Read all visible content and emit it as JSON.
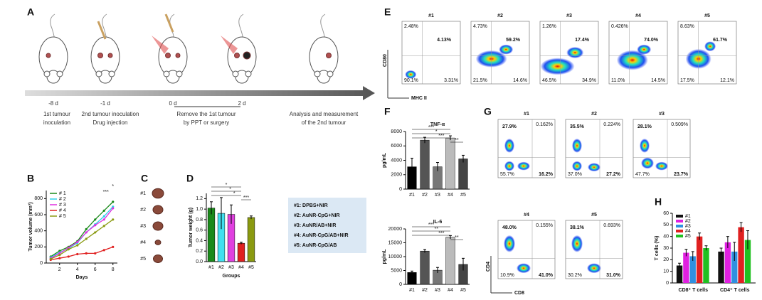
{
  "panel_a": {
    "label": "A",
    "days": [
      "-8 d",
      "-1 d",
      "0 d",
      "2 d"
    ],
    "captions": [
      [
        "1st tumour",
        "inoculation"
      ],
      [
        "2nd tumour inoculation",
        "Drug injection"
      ],
      [
        "Remove the 1st tumour",
        "by PPT or surgery"
      ],
      [
        "Analysis and measurement",
        "of the 2nd tumour"
      ]
    ]
  },
  "panel_c": {
    "label": "C",
    "labels": [
      "#1",
      "#2",
      "#3",
      "#4",
      "#5"
    ]
  },
  "legend_box": [
    "#1: DPBS+NIR",
    "#2: AuNR-CpG+NIR",
    "#3: AuNR/AB+NIR",
    "#4: AuNR-CpG/AB+NIR",
    "#5: AuNR-CpG/AB"
  ],
  "chart_data": [
    {
      "panel": "B",
      "type": "line",
      "ylabel": "Tumor volume (mm³)",
      "xlabel": "Days",
      "x": [
        1,
        2,
        3,
        4,
        5,
        6,
        7,
        8
      ],
      "xlim": [
        0.5,
        8.5
      ],
      "xticks": [
        2,
        4,
        6,
        8
      ],
      "ylim": [
        0,
        900
      ],
      "yticks": [
        0,
        200,
        400,
        600,
        800
      ],
      "series": [
        {
          "name": "# 1",
          "color": "#1a8a1a",
          "values": [
            80,
            150,
            200,
            270,
            420,
            540,
            650,
            760
          ]
        },
        {
          "name": "# 2",
          "color": "#30d0e8",
          "values": [
            70,
            130,
            180,
            250,
            380,
            480,
            580,
            700
          ]
        },
        {
          "name": "# 3",
          "color": "#e030e0",
          "values": [
            60,
            120,
            190,
            260,
            380,
            470,
            540,
            680
          ]
        },
        {
          "name": "# 4",
          "color": "#e02020",
          "values": [
            40,
            60,
            80,
            110,
            120,
            120,
            160,
            200
          ]
        },
        {
          "name": "# 5",
          "color": "#8a9a10",
          "values": [
            50,
            100,
            170,
            220,
            300,
            380,
            460,
            540
          ]
        }
      ],
      "annotations": [
        "*",
        "***"
      ]
    },
    {
      "panel": "D",
      "type": "bar",
      "ylabel": "Tumor weight (g)",
      "xlabel": "Groups",
      "categories": [
        "#1",
        "#2",
        "#3",
        "#4",
        "#5"
      ],
      "values": [
        1.02,
        0.92,
        0.9,
        0.35,
        0.84
      ],
      "errors": [
        0.12,
        0.3,
        0.18,
        0.02,
        0.03
      ],
      "colors": [
        "#1a8a1a",
        "#40e0f0",
        "#e040e0",
        "#e02020",
        "#8a9a10"
      ],
      "ylim": [
        0,
        1.3
      ],
      "yticks": [
        {
          "value": 0,
          "label": "0.0"
        },
        0.2,
        0.4,
        0.6,
        0.8,
        {
          "value": 1,
          "label": "1.0"
        },
        1.2
      ],
      "annotations": [
        "*",
        "*",
        "*",
        "***"
      ]
    },
    {
      "panel": "F",
      "type": "bar",
      "title": "TNF-α",
      "ylabel": "pg/mL",
      "categories": [
        "#1",
        "#2",
        "#3",
        "#4",
        "#5"
      ],
      "values": [
        3100,
        6800,
        3100,
        7100,
        4200
      ],
      "errors": [
        1200,
        400,
        600,
        300,
        500
      ],
      "colors": [
        "#000000",
        "#555555",
        "#777777",
        "#bbbbbb",
        "#444444"
      ],
      "ylim": [
        0,
        8000
      ],
      "yticks": [
        0,
        2000,
        4000,
        6000,
        8000
      ],
      "annotations": [
        "***",
        "*",
        "***",
        "**"
      ]
    },
    {
      "type": "bar",
      "title": "IL-6",
      "ylabel": "pg/mL",
      "categories": [
        "#1",
        "#2",
        "#3",
        "#4",
        "#5"
      ],
      "values": [
        4300,
        12000,
        5100,
        17000,
        7200
      ],
      "errors": [
        500,
        600,
        1000,
        600,
        2200
      ],
      "colors": [
        "#000000",
        "#555555",
        "#777777",
        "#bbbbbb",
        "#444444"
      ],
      "ylim": [
        0,
        20000
      ],
      "yticks": [
        0,
        5000,
        10000,
        15000,
        20000
      ],
      "annotations": [
        "***",
        "**",
        "***",
        "**"
      ]
    },
    {
      "panel": "H",
      "type": "bar",
      "ylabel": "T cells (%)",
      "categories": [
        "CD8⁺ T cells",
        "CD4⁺ T cells"
      ],
      "series": [
        {
          "name": "#1",
          "color": "#111111",
          "values": [
            15,
            27
          ],
          "errors": [
            2,
            3
          ]
        },
        {
          "name": "#2",
          "color": "#e020e0",
          "values": [
            26,
            35
          ],
          "errors": [
            3,
            5
          ]
        },
        {
          "name": "#3",
          "color": "#3090e0",
          "values": [
            23,
            27
          ],
          "errors": [
            4,
            8
          ]
        },
        {
          "name": "#4",
          "color": "#e02020",
          "values": [
            40,
            48
          ],
          "errors": [
            3,
            4
          ]
        },
        {
          "name": "#5",
          "color": "#20c020",
          "values": [
            30,
            37
          ],
          "errors": [
            2,
            8
          ]
        }
      ],
      "ylim": [
        0,
        60
      ],
      "yticks": [
        0,
        10,
        20,
        30,
        40,
        50,
        60
      ]
    }
  ],
  "flow_panels": [
    {
      "panel": "E",
      "ylabel": "CD80",
      "xlabel": "MHC II",
      "highlight": [
        1
      ],
      "plots": [
        {
          "title": "#1",
          "quadrants": [
            "2.48%",
            "4.13%",
            "90.1%",
            "3.31%"
          ]
        },
        {
          "title": "#2",
          "quadrants": [
            "4.73%",
            "59.2%",
            "21.5%",
            "14.6%"
          ]
        },
        {
          "title": "#3",
          "quadrants": [
            "1.26%",
            "17.4%",
            "46.5%",
            "34.9%"
          ]
        },
        {
          "title": "#4",
          "quadrants": [
            "0.426%",
            "74.0%",
            "11.0%",
            "14.5%"
          ]
        },
        {
          "title": "#5",
          "quadrants": [
            "8.63%",
            "61.7%",
            "17.5%",
            "12.1%"
          ]
        }
      ]
    },
    {
      "panel": "G",
      "ylabel": "CD4",
      "xlabel": "CD8",
      "highlight": [
        0,
        3
      ],
      "plots": [
        {
          "title": "#1",
          "quadrants": [
            "27.9%",
            "0.162%",
            "55.7%",
            "16.2%"
          ]
        },
        {
          "title": "#2",
          "quadrants": [
            "35.5%",
            "0.224%",
            "37.0%",
            "27.2%"
          ]
        },
        {
          "title": "#3",
          "quadrants": [
            "28.1%",
            "0.509%",
            "47.7%",
            "23.7%"
          ]
        },
        {
          "title": "#4",
          "quadrants": [
            "48.0%",
            "0.155%",
            "10.9%",
            "41.0%"
          ]
        },
        {
          "title": "#5",
          "quadrants": [
            "38.1%",
            "0.693%",
            "30.2%",
            "31.0%"
          ]
        }
      ]
    }
  ]
}
